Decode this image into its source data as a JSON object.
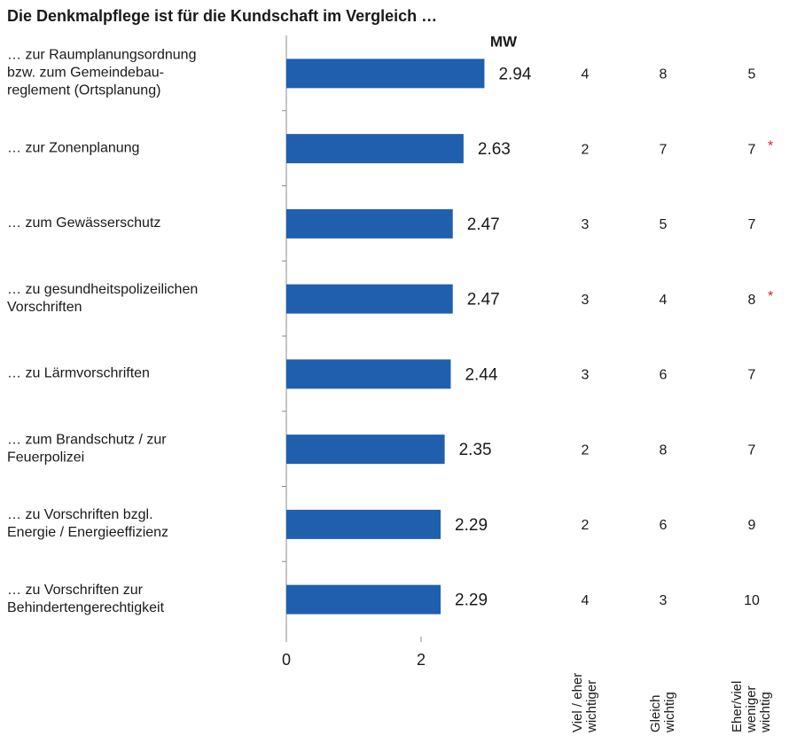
{
  "chart_data": {
    "type": "bar",
    "orientation": "horizontal",
    "title": "Die Denkmalpflege ist für die Kundschaft im Vergleich …",
    "value_header": "MW",
    "categories": [
      [
        "… zur Raumplanungsordnung",
        "bzw. zum Gemeindebau-",
        "reglement (Ortsplanung)"
      ],
      [
        "… zur Zonenplanung"
      ],
      [
        "… zum Gewässerschutz"
      ],
      [
        "… zu gesundheitspolizeilichen",
        "Vorschriften"
      ],
      [
        "… zu Lärmvorschriften"
      ],
      [
        "… zum Brandschutz / zur",
        "Feuerpolizei"
      ],
      [
        "… zu Vorschriften bzgl.",
        "Energie / Energieeffizienz"
      ],
      [
        "… zu Vorschriften zur",
        "Behindertengerechtigkeit"
      ]
    ],
    "values": [
      2.94,
      2.63,
      2.47,
      2.47,
      2.44,
      2.35,
      2.29,
      2.29
    ],
    "color": "#1f5fae",
    "xlim": [
      0,
      4
    ],
    "xticks": [
      0,
      2
    ],
    "table": {
      "columns": [
        [
          "Viel / eher",
          "wichtiger"
        ],
        [
          "Gleich",
          "wichtig"
        ],
        [
          "Eher/viel",
          "weniger",
          "wichtig"
        ]
      ],
      "rows": [
        [
          4,
          8,
          5
        ],
        [
          2,
          7,
          7
        ],
        [
          3,
          5,
          7
        ],
        [
          3,
          4,
          8
        ],
        [
          3,
          6,
          7
        ],
        [
          2,
          8,
          7
        ],
        [
          2,
          6,
          9
        ],
        [
          4,
          3,
          10
        ]
      ],
      "flags": [
        {
          "row": 1,
          "label": "*"
        },
        {
          "row": 3,
          "label": "*"
        }
      ],
      "flag_color": "#e02020"
    }
  }
}
